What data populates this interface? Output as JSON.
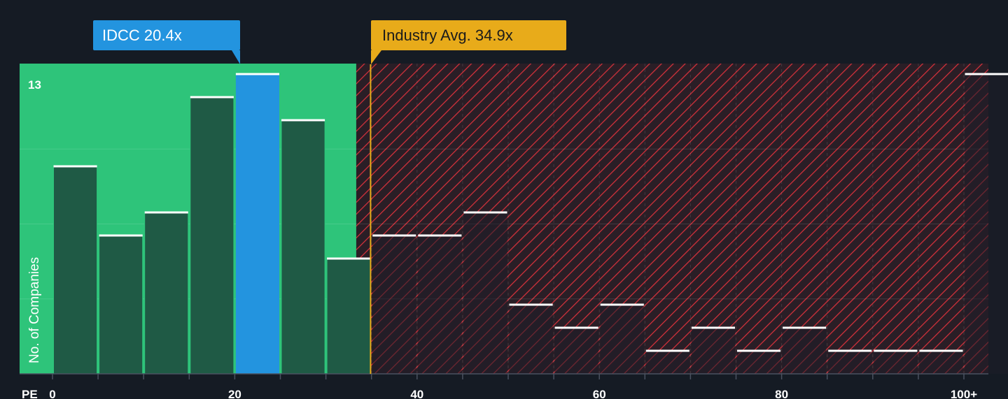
{
  "chart_data": {
    "type": "bar",
    "xlabel": "PE",
    "ylabel": "No. of Companies",
    "x_ticks": [
      "0",
      "20",
      "40",
      "60",
      "80",
      "100+"
    ],
    "y_max_label": "13",
    "ylim": [
      0,
      13
    ],
    "xlim": [
      0,
      100
    ],
    "bins": [
      {
        "start": 0,
        "end": 5,
        "value": 9
      },
      {
        "start": 5,
        "end": 10,
        "value": 6
      },
      {
        "start": 10,
        "end": 15,
        "value": 7
      },
      {
        "start": 15,
        "end": 20,
        "value": 12
      },
      {
        "start": 20,
        "end": 25,
        "value": 13
      },
      {
        "start": 25,
        "end": 30,
        "value": 11
      },
      {
        "start": 30,
        "end": 35,
        "value": 5
      },
      {
        "start": 35,
        "end": 40,
        "value": 6
      },
      {
        "start": 40,
        "end": 45,
        "value": 6
      },
      {
        "start": 45,
        "end": 50,
        "value": 7
      },
      {
        "start": 50,
        "end": 55,
        "value": 3
      },
      {
        "start": 55,
        "end": 60,
        "value": 2
      },
      {
        "start": 60,
        "end": 65,
        "value": 3
      },
      {
        "start": 65,
        "end": 70,
        "value": 1
      },
      {
        "start": 70,
        "end": 75,
        "value": 2
      },
      {
        "start": 75,
        "end": 80,
        "value": 1
      },
      {
        "start": 80,
        "end": 85,
        "value": 2
      },
      {
        "start": 85,
        "end": 90,
        "value": 1
      },
      {
        "start": 90,
        "end": 95,
        "value": 1
      },
      {
        "start": 95,
        "end": 100,
        "value": 1
      },
      {
        "start": 100,
        "end": 105,
        "value": 13
      }
    ],
    "highlight": {
      "label": "IDCC 20.4x",
      "value": 20.4,
      "bin_index": 4,
      "color": "#2394df"
    },
    "industry_avg": {
      "label": "Industry Avg. 34.9x",
      "value": 34.9,
      "color": "#e8ab1a"
    },
    "grid": true,
    "colors": {
      "background": "#151b24",
      "fair_region": "#2ec47a",
      "bar_fill": "#1f5a45",
      "bar_stroke": "#2ec47a",
      "over_region": "#2a1e26",
      "hatch": "#d6313b",
      "bar_top": "#ffffff"
    }
  }
}
